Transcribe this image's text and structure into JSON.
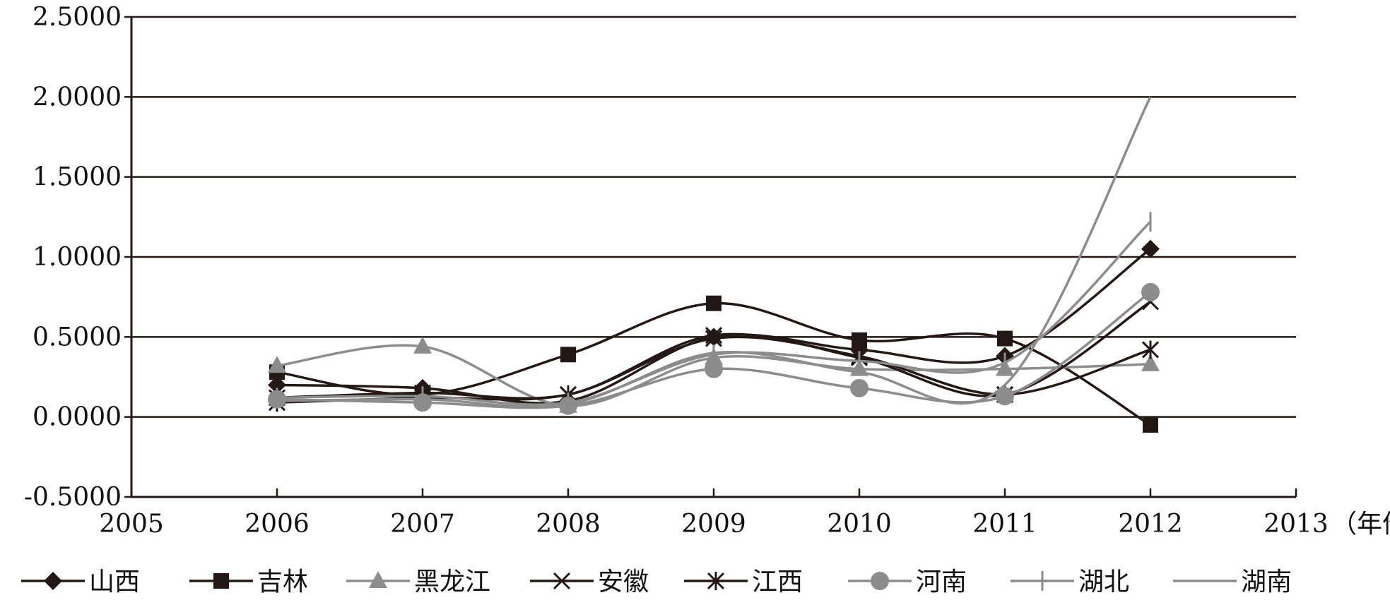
{
  "chart_data": {
    "type": "line",
    "title": "",
    "xlabel": "（年份）",
    "ylabel": "",
    "x_ticks": [
      "2005",
      "2006",
      "2007",
      "2008",
      "2009",
      "2010",
      "2011",
      "2012",
      "2013"
    ],
    "y_ticks": [
      "2.5000",
      "2.0000",
      "1.5000",
      "1.0000",
      "0.5000",
      "0.0000",
      "-0.5000"
    ],
    "xlim": [
      2005,
      2013
    ],
    "ylim": [
      -0.5,
      2.5
    ],
    "grid": "horizontal",
    "legend_position": "bottom",
    "x": [
      2006,
      2007,
      2008,
      2009,
      2010,
      2011,
      2012
    ],
    "series": [
      {
        "name": "山西",
        "color": "#231815",
        "marker": "diamond",
        "values": [
          0.2,
          0.18,
          0.1,
          0.5,
          0.42,
          0.38,
          1.05
        ]
      },
      {
        "name": "吉林",
        "color": "#231815",
        "marker": "square",
        "values": [
          0.28,
          0.14,
          0.39,
          0.71,
          0.48,
          0.49,
          -0.05
        ]
      },
      {
        "name": "黑龙江",
        "color": "#8c8c8c",
        "marker": "triangle",
        "values": [
          0.32,
          0.44,
          0.07,
          0.37,
          0.3,
          0.3,
          0.33
        ]
      },
      {
        "name": "安徽",
        "color": "#231815",
        "marker": "x",
        "values": [
          0.12,
          0.15,
          0.14,
          0.51,
          0.37,
          0.14,
          0.72
        ]
      },
      {
        "name": "江西",
        "color": "#231815",
        "marker": "asterisk",
        "values": [
          0.09,
          0.12,
          0.14,
          0.49,
          0.38,
          0.14,
          0.42
        ]
      },
      {
        "name": "河南",
        "color": "#8c8c8c",
        "marker": "circle",
        "values": [
          0.11,
          0.09,
          0.07,
          0.3,
          0.18,
          0.13,
          0.78
        ]
      },
      {
        "name": "湖北",
        "color": "#8c8c8c",
        "marker": "plus",
        "values": [
          0.12,
          0.13,
          0.09,
          0.39,
          0.35,
          0.34,
          1.22
        ]
      },
      {
        "name": "湖南",
        "color": "#8c8c8c",
        "marker": "none",
        "values": [
          0.1,
          0.11,
          0.08,
          0.4,
          0.28,
          0.2,
          2.0
        ]
      }
    ]
  }
}
